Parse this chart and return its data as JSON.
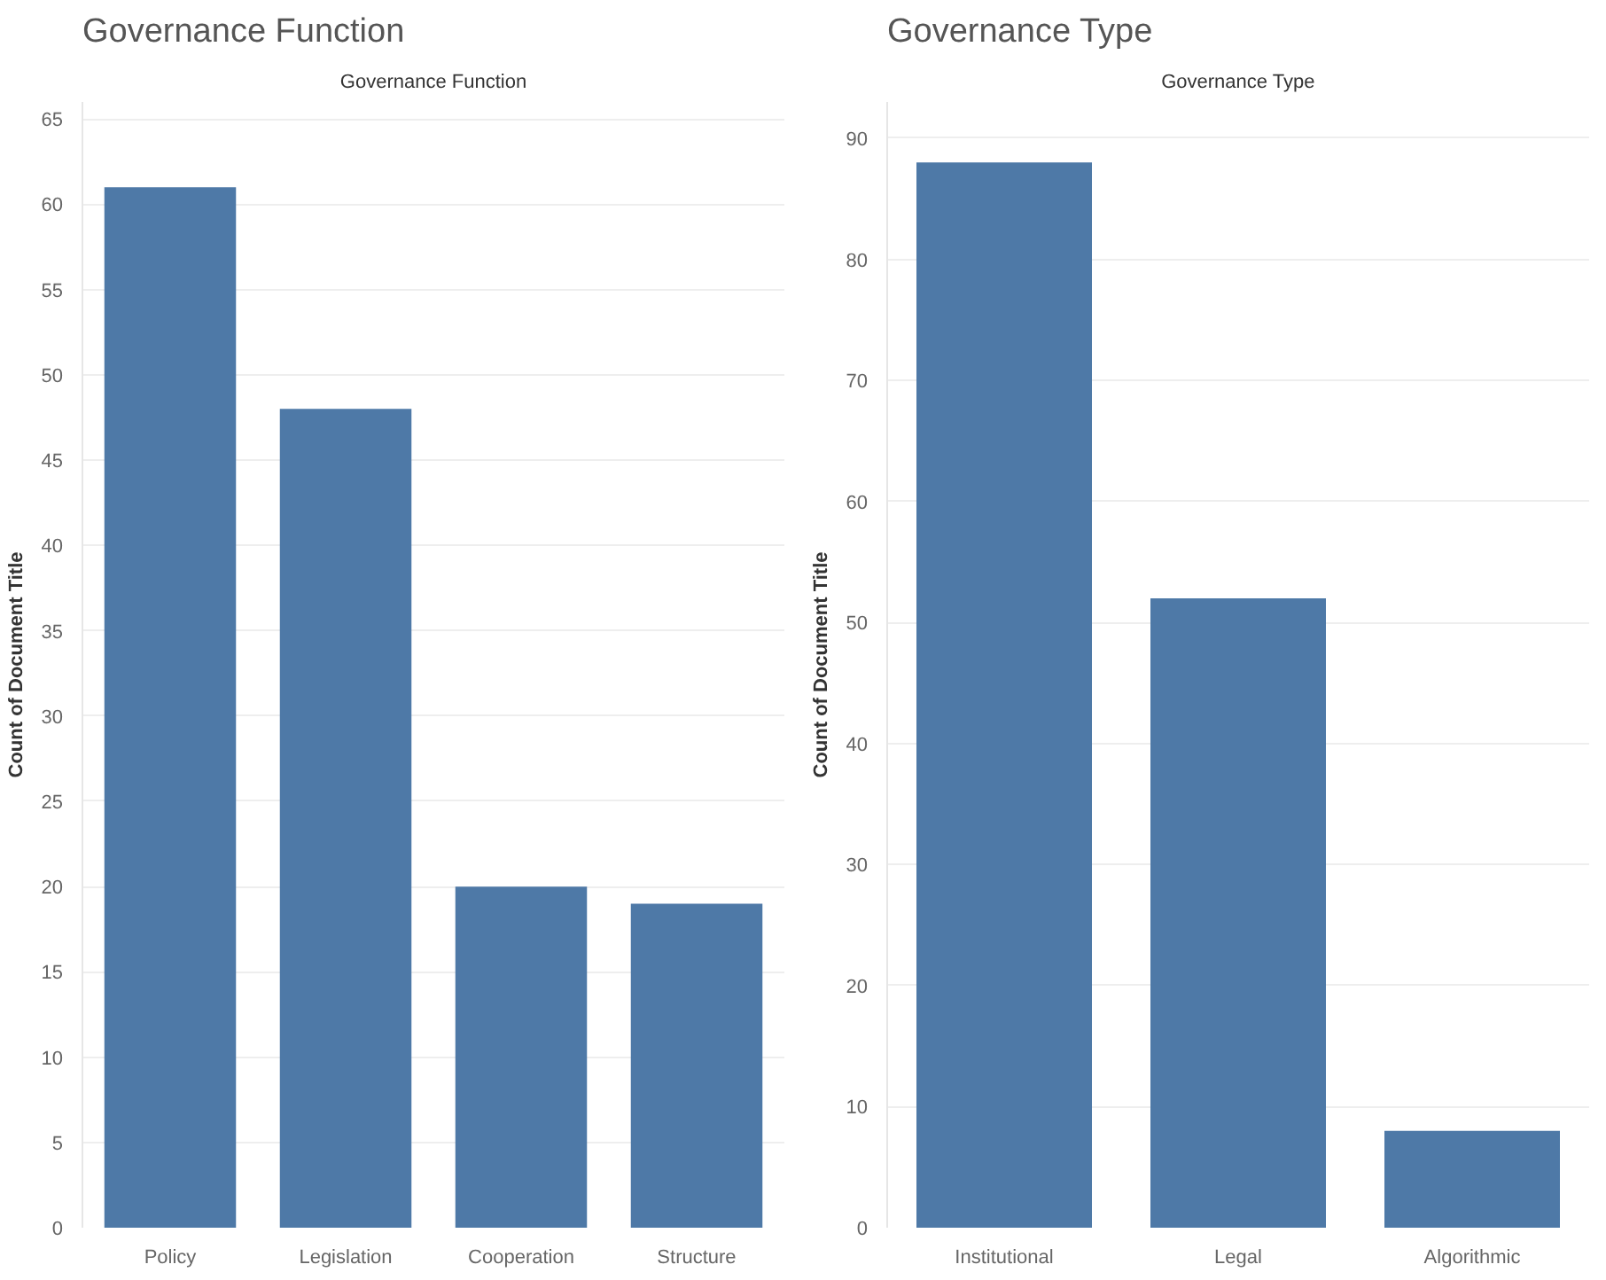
{
  "chart_data": [
    {
      "type": "bar",
      "title": "Governance Function",
      "xlabel": "Governance Function",
      "ylabel": "Count of Document Title",
      "categories": [
        "Policy",
        "Legislation",
        "Cooperation",
        "Structure"
      ],
      "values": [
        61,
        48,
        20,
        19
      ],
      "color": "#4e79a7",
      "ylim": [
        0,
        66
      ],
      "yticks": [
        0,
        5,
        10,
        15,
        20,
        25,
        30,
        35,
        40,
        45,
        50,
        55,
        60,
        65
      ],
      "grid": "y"
    },
    {
      "type": "bar",
      "title": "Governance Type",
      "xlabel": "Governance Type",
      "ylabel": "Count of Document Title",
      "categories": [
        "Institutional",
        "Legal",
        "Algorithmic"
      ],
      "values": [
        88,
        52,
        8
      ],
      "color": "#4e79a7",
      "ylim": [
        0,
        93
      ],
      "yticks": [
        0,
        10,
        20,
        30,
        40,
        50,
        60,
        70,
        80,
        90
      ],
      "grid": "y"
    }
  ]
}
